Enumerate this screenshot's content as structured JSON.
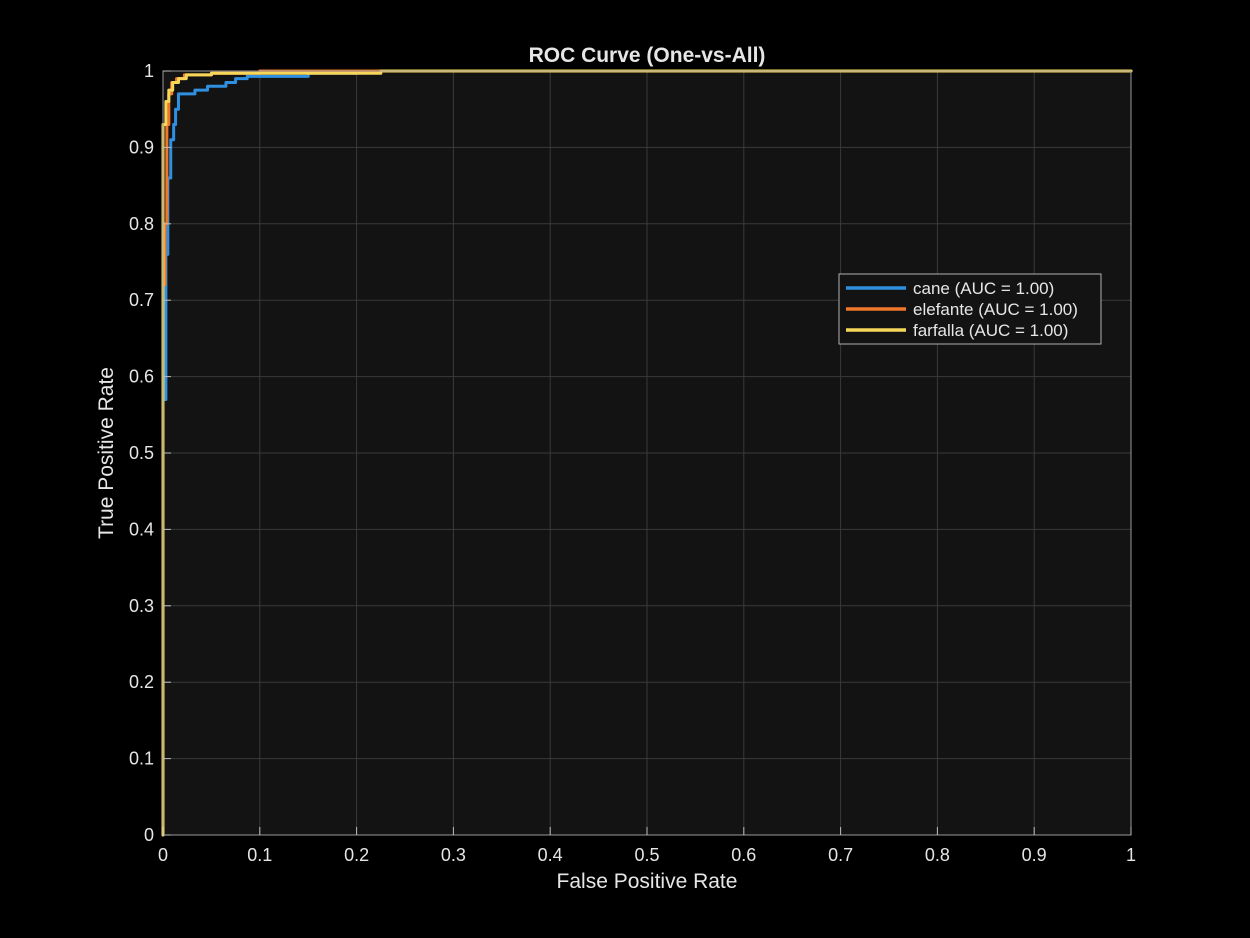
{
  "chart_data": {
    "type": "line",
    "title": "ROC Curve (One-vs-All)",
    "xlabel": "False Positive Rate",
    "ylabel": "True Positive Rate",
    "xlim": [
      0,
      1
    ],
    "ylim": [
      0,
      1
    ],
    "xticks": [
      "0",
      "0.1",
      "0.2",
      "0.3",
      "0.4",
      "0.5",
      "0.6",
      "0.7",
      "0.8",
      "0.9",
      "1"
    ],
    "yticks": [
      "0",
      "0.1",
      "0.2",
      "0.3",
      "0.4",
      "0.5",
      "0.6",
      "0.7",
      "0.8",
      "0.9",
      "1"
    ],
    "grid": true,
    "legend_position": "right",
    "background_color": "#131313",
    "figure_color": "#000000",
    "series": [
      {
        "name": "cane (AUC = 1.00)",
        "color": "#2f8fe0",
        "points": [
          [
            0,
            0
          ],
          [
            0,
            0.57
          ],
          [
            0.003,
            0.57
          ],
          [
            0.003,
            0.76
          ],
          [
            0.005,
            0.76
          ],
          [
            0.005,
            0.86
          ],
          [
            0.008,
            0.86
          ],
          [
            0.008,
            0.91
          ],
          [
            0.011,
            0.91
          ],
          [
            0.011,
            0.93
          ],
          [
            0.013,
            0.93
          ],
          [
            0.013,
            0.95
          ],
          [
            0.016,
            0.95
          ],
          [
            0.016,
            0.97
          ],
          [
            0.033,
            0.97
          ],
          [
            0.033,
            0.975
          ],
          [
            0.046,
            0.975
          ],
          [
            0.046,
            0.98
          ],
          [
            0.065,
            0.98
          ],
          [
            0.065,
            0.985
          ],
          [
            0.075,
            0.985
          ],
          [
            0.075,
            0.99
          ],
          [
            0.087,
            0.99
          ],
          [
            0.087,
            0.993
          ],
          [
            0.15,
            0.993
          ],
          [
            0.15,
            0.997
          ],
          [
            0.2,
            0.997
          ],
          [
            0.2,
            1.0
          ],
          [
            1,
            1
          ]
        ]
      },
      {
        "name": "elefante (AUC = 1.00)",
        "color": "#f0782a",
        "points": [
          [
            0,
            0
          ],
          [
            0,
            0.72
          ],
          [
            0.002,
            0.72
          ],
          [
            0.002,
            0.8
          ],
          [
            0.004,
            0.8
          ],
          [
            0.004,
            0.93
          ],
          [
            0.006,
            0.93
          ],
          [
            0.006,
            0.97
          ],
          [
            0.009,
            0.97
          ],
          [
            0.009,
            0.985
          ],
          [
            0.014,
            0.985
          ],
          [
            0.014,
            0.99
          ],
          [
            0.022,
            0.99
          ],
          [
            0.022,
            0.995
          ],
          [
            0.05,
            0.995
          ],
          [
            0.05,
            0.997
          ],
          [
            0.1,
            0.997
          ],
          [
            0.1,
            1.0
          ],
          [
            1,
            1
          ]
        ]
      },
      {
        "name": "farfalla (AUC = 1.00)",
        "color": "#f6d75a",
        "points": [
          [
            0,
            0
          ],
          [
            0,
            0.93
          ],
          [
            0.003,
            0.93
          ],
          [
            0.003,
            0.96
          ],
          [
            0.006,
            0.96
          ],
          [
            0.006,
            0.975
          ],
          [
            0.01,
            0.975
          ],
          [
            0.01,
            0.985
          ],
          [
            0.016,
            0.985
          ],
          [
            0.016,
            0.99
          ],
          [
            0.024,
            0.99
          ],
          [
            0.024,
            0.995
          ],
          [
            0.05,
            0.995
          ],
          [
            0.05,
            0.997
          ],
          [
            0.225,
            0.997
          ],
          [
            0.225,
            1.0
          ],
          [
            1,
            1
          ]
        ]
      }
    ]
  }
}
